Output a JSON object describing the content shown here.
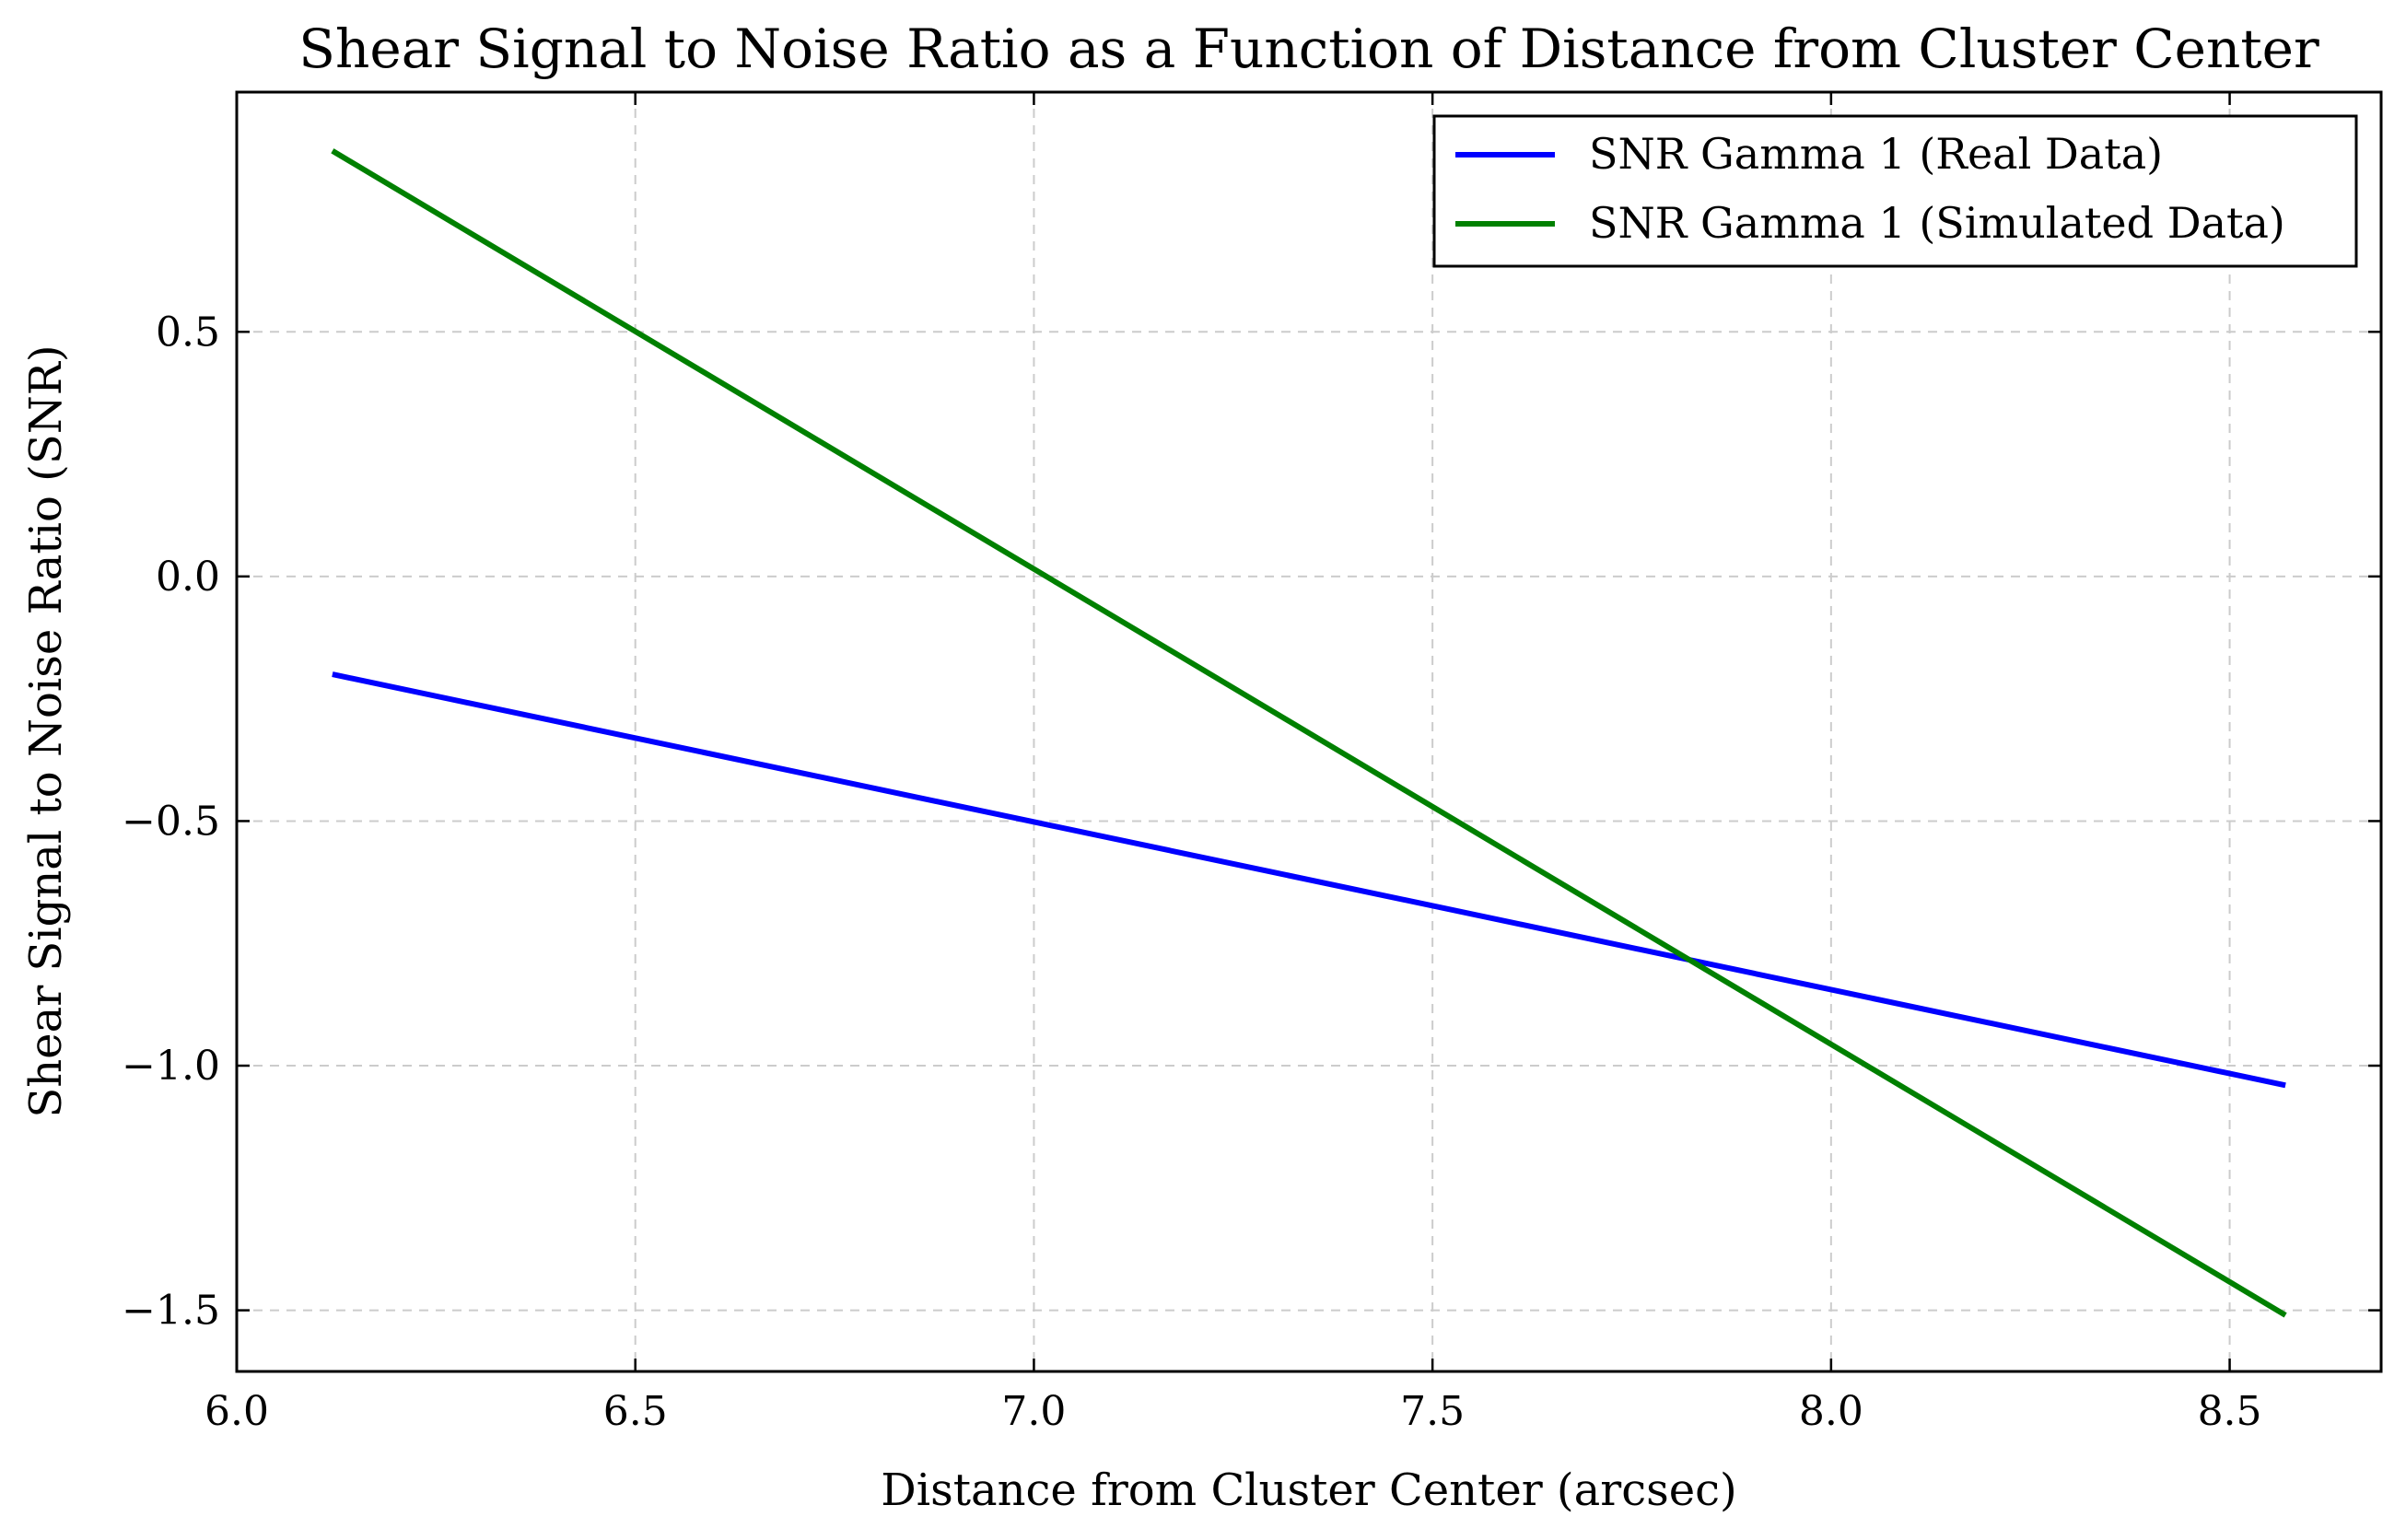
{
  "chart_data": {
    "type": "line",
    "title": "Shear Signal to Noise Ratio as a Function of Distance from Cluster Center",
    "xlabel": "Distance from Cluster Center (arcsec)",
    "ylabel": "Shear Signal to Noise Ratio (SNR)",
    "xlim": [
      6.0,
      8.69
    ],
    "ylim": [
      -1.625,
      0.99
    ],
    "xticks": [
      6.0,
      6.5,
      7.0,
      7.5,
      8.0,
      8.5
    ],
    "xtick_labels": [
      "6.0",
      "6.5",
      "7.0",
      "7.5",
      "8.0",
      "8.5"
    ],
    "yticks": [
      -1.5,
      -1.0,
      -0.5,
      0.0,
      0.5
    ],
    "ytick_labels": [
      "−1.5",
      "−1.0",
      "−0.5",
      "0.0",
      "0.5"
    ],
    "grid": true,
    "legend_position": "top-right",
    "series": [
      {
        "name": "SNR Gamma 1 (Real Data)",
        "color": "#0000ff",
        "x": [
          6.12,
          8.57
        ],
        "y": [
          -0.2,
          -1.04
        ]
      },
      {
        "name": "SNR Gamma 1 (Simulated Data)",
        "color": "#008000",
        "x": [
          6.12,
          8.57
        ],
        "y": [
          0.87,
          -1.51
        ]
      }
    ]
  }
}
